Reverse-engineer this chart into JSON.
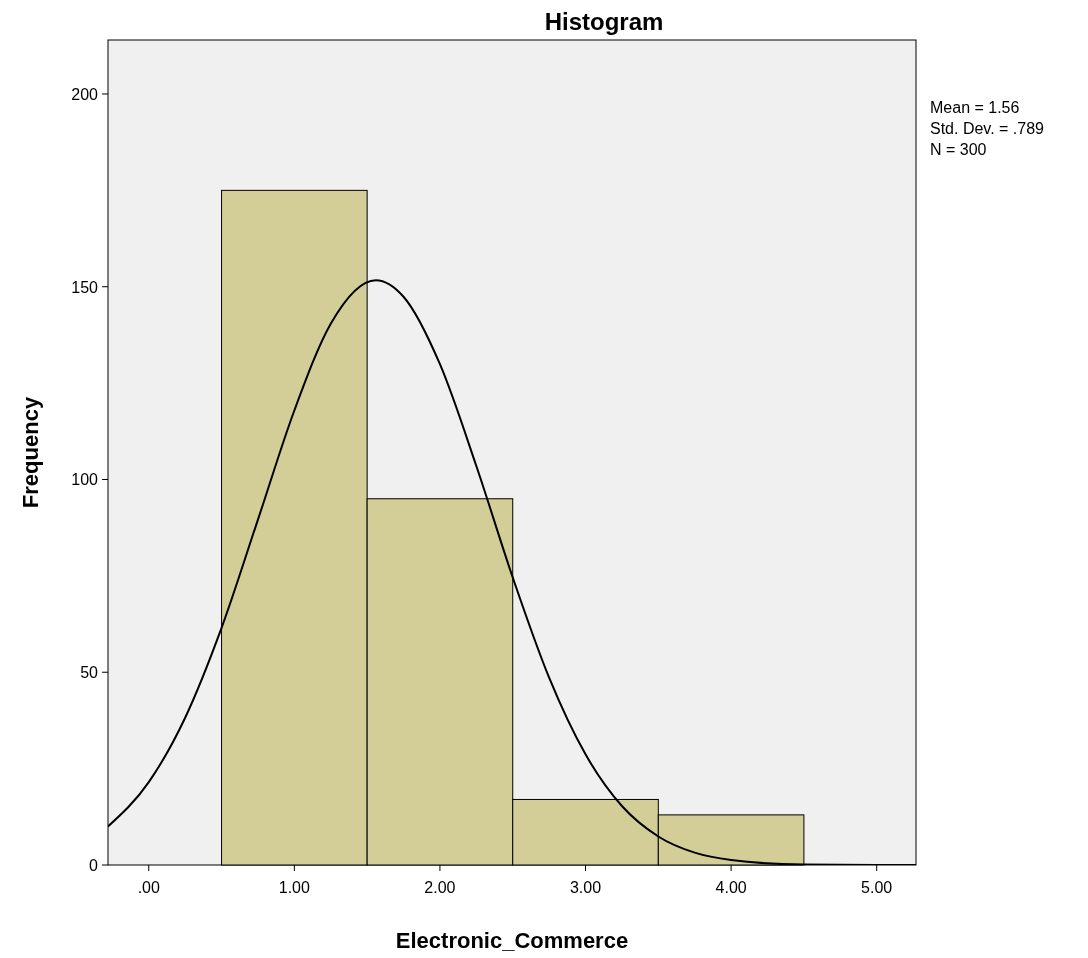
{
  "chart_data": {
    "type": "histogram",
    "title": "Histogram",
    "xlabel": "Electronic_Commerce",
    "ylabel": "Frequency",
    "bins": [
      0.5,
      1.5,
      2.5,
      3.5,
      4.5
    ],
    "values": [
      175,
      95,
      17,
      13
    ],
    "color": "#d3ce97",
    "series": [
      {
        "type": "line",
        "color": "#000000",
        "x": [
          -0.28,
          0,
          0.25,
          0.5,
          0.75,
          1,
          1.25,
          1.56,
          1.75,
          2,
          2.25,
          2.5,
          2.75,
          3,
          3.25,
          3.5,
          3.75,
          4,
          4.5,
          5,
          5.27
        ],
        "values": [
          10,
          21.5,
          38.2,
          61.5,
          89.6,
          117.9,
          140.4,
          151.7,
          147.4,
          129.9,
          103.5,
          74.6,
          48.6,
          28.7,
          15.3,
          7.4,
          3.2,
          1.3,
          0.1,
          0,
          0
        ]
      }
    ],
    "xlim": [
      -0.28,
      5.27
    ],
    "ylim": [
      0,
      214
    ],
    "xticks": [
      {
        "value": 0,
        "label": ".00"
      },
      {
        "value": 1,
        "label": "1.00"
      },
      {
        "value": 2,
        "label": "2.00"
      },
      {
        "value": 3,
        "label": "3.00"
      },
      {
        "value": 4,
        "label": "4.00"
      },
      {
        "value": 5,
        "label": "5.00"
      }
    ],
    "yticks": [
      0,
      50,
      100,
      150,
      200
    ],
    "annotations": [
      "Mean = 1.56",
      "Std. Dev. = .789",
      "N = 300"
    ]
  }
}
